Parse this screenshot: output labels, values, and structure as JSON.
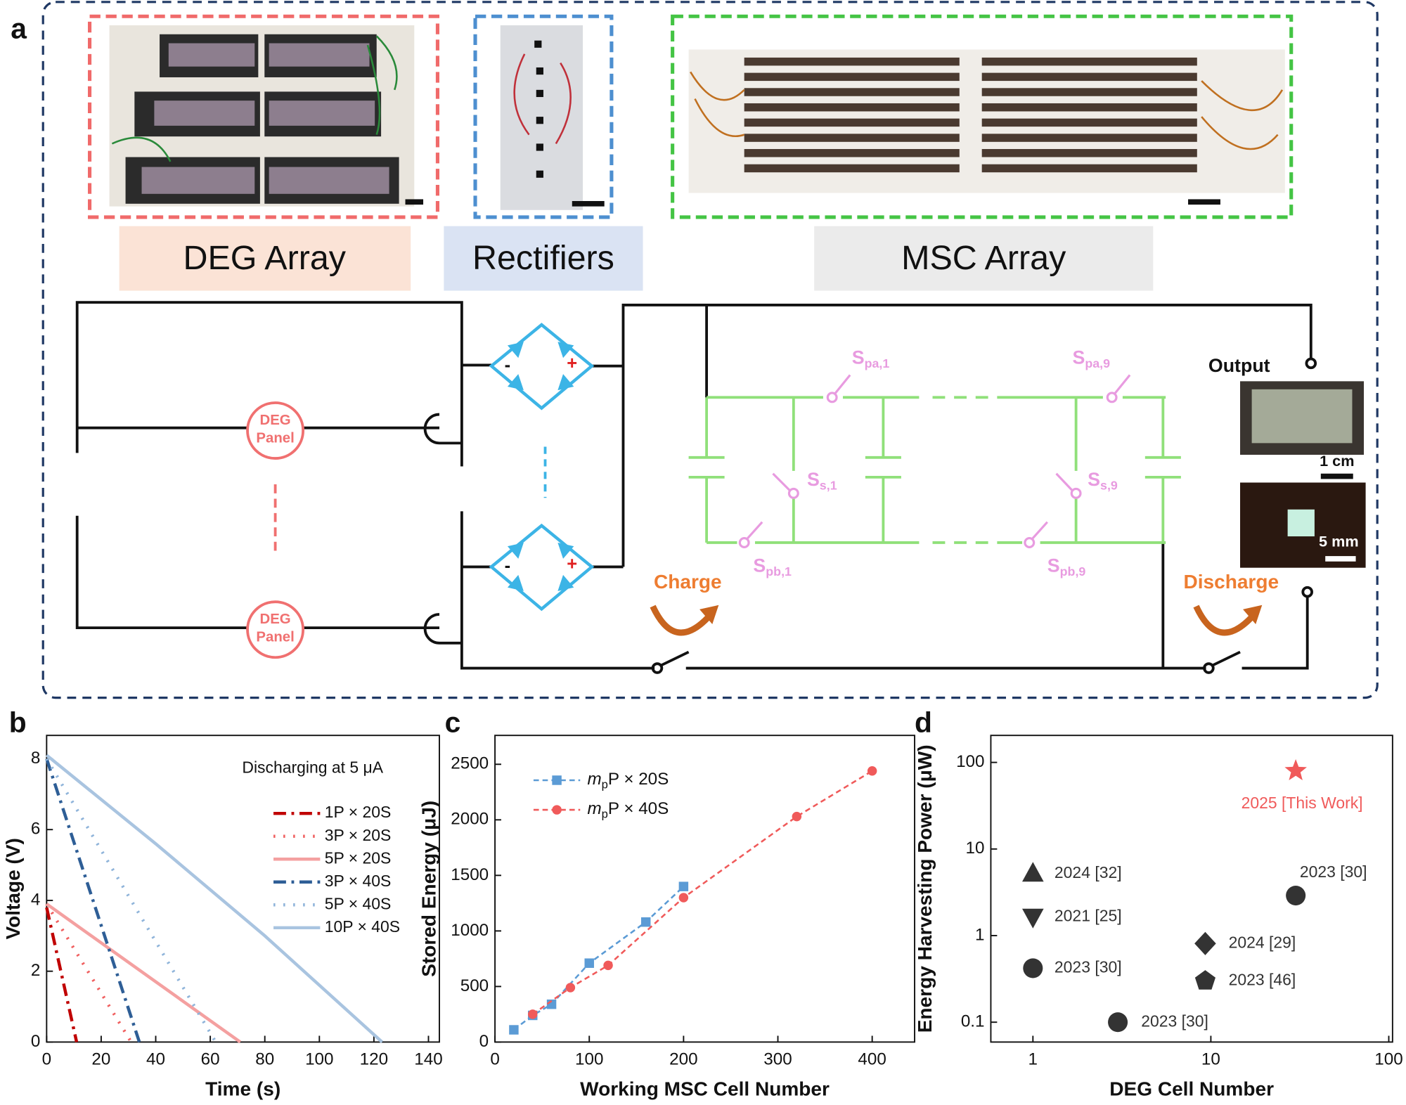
{
  "figure": {
    "panel_labels": [
      "a",
      "b",
      "c",
      "d"
    ]
  },
  "panel_a": {
    "photo_labels": [
      "DEG Array",
      "Rectifiers",
      "MSC Array"
    ],
    "deg_panels": [
      [
        "DEG",
        "Panel"
      ],
      [
        "DEG",
        "Panel"
      ]
    ],
    "rectifier_signs": [
      "-",
      "+",
      "-",
      "+"
    ],
    "switch_labels": [
      {
        "base": "S",
        "sub": "pa,1"
      },
      {
        "base": "S",
        "sub": "pa,9"
      },
      {
        "base": "S",
        "sub": "s,1"
      },
      {
        "base": "S",
        "sub": "s,9"
      },
      {
        "base": "S",
        "sub": "pb,1"
      },
      {
        "base": "S",
        "sub": "pb,9"
      }
    ],
    "charge": "Charge",
    "discharge": "Discharge",
    "output": "Output",
    "scale_bars": [
      "1 cm",
      "5 mm"
    ]
  },
  "chart_data": [
    {
      "type": "line",
      "annotation": "Discharging at 5 μA",
      "x_label": "Time (s)",
      "y_label": "Voltage (V)",
      "xlim": [
        0,
        144
      ],
      "xticks": [
        0,
        20,
        40,
        60,
        80,
        100,
        120,
        140
      ],
      "ylim": [
        0,
        8.66
      ],
      "yticks": [
        0,
        2,
        4,
        6,
        8
      ],
      "series": [
        {
          "name": "1P × 20S",
          "color": "#c00000",
          "dash": "dashdot",
          "x": [
            0,
            11
          ],
          "values": [
            3.8,
            0
          ]
        },
        {
          "name": "3P × 20S",
          "color": "#f06060",
          "dash": "dot",
          "x": [
            0,
            31
          ],
          "values": [
            3.9,
            0
          ]
        },
        {
          "name": "5P × 20S",
          "color": "#f4a0a0",
          "dash": "solid",
          "x": [
            0,
            71
          ],
          "values": [
            3.9,
            0
          ]
        },
        {
          "name": "3P × 40S",
          "color": "#2e5e96",
          "dash": "dashdot",
          "x": [
            0,
            34
          ],
          "values": [
            8,
            0
          ]
        },
        {
          "name": "5P × 40S",
          "color": "#8fb4da",
          "dash": "dot",
          "x": [
            0,
            62
          ],
          "values": [
            8,
            0
          ]
        },
        {
          "name": "10P × 40S",
          "color": "#a9c4e0",
          "dash": "solid",
          "x": [
            0,
            40,
            80,
            123
          ],
          "values": [
            8.1,
            5.6,
            3.0,
            0
          ]
        }
      ]
    },
    {
      "type": "line",
      "x_label": "Working MSC Cell Number",
      "y_label": "Stored Energy (μJ)",
      "xlim": [
        0,
        445
      ],
      "xticks": [
        0,
        100,
        200,
        300,
        400
      ],
      "ylim": [
        0,
        2760
      ],
      "yticks": [
        0,
        500,
        1000,
        1500,
        2000,
        2500
      ],
      "series": [
        {
          "name": [
            "m",
            "p",
            "P × 20S"
          ],
          "color": "#5b9bd5",
          "dash": "dash",
          "marker": "square",
          "x": [
            20,
            40,
            60,
            100,
            160,
            200
          ],
          "values": [
            110,
            240,
            340,
            710,
            1080,
            1400
          ]
        },
        {
          "name": [
            "m",
            "p",
            "P × 40S"
          ],
          "color": "#f05a5a",
          "dash": "dash",
          "marker": "circle",
          "x": [
            40,
            80,
            120,
            200,
            320,
            400
          ],
          "values": [
            250,
            490,
            690,
            1300,
            2030,
            2440
          ]
        }
      ]
    },
    {
      "type": "scatter",
      "x_label": "DEG Cell Number",
      "y_label": "Energy Harvesting Power (μW)",
      "xscale": "log",
      "yscale": "log",
      "xlim": [
        0.58,
        105
      ],
      "xticks": [
        1,
        10,
        100
      ],
      "ylim": [
        0.059,
        205
      ],
      "yticks": [
        0.1,
        1,
        10,
        100
      ],
      "x": [
        30,
        1,
        1,
        1,
        3,
        9.3,
        9.3,
        30
      ],
      "values": [
        80,
        5.2,
        1.65,
        0.42,
        0.1,
        0.81,
        0.3,
        2.9
      ],
      "markers": [
        "star",
        "triangle-up",
        "triangle-down",
        "circle",
        "circle",
        "diamond",
        "pentagon",
        "circle"
      ],
      "colors": [
        "#f05a5a",
        "#333333",
        "#333333",
        "#333333",
        "#333333",
        "#333333",
        "#333333",
        "#333333"
      ],
      "point_labels": [
        "2025 [This Work]",
        "2024 [32]",
        "2021 [25]",
        "2023 [30]",
        "2023 [30]",
        "2024 [29]",
        "2023 [46]",
        "2023 [30]"
      ]
    }
  ]
}
